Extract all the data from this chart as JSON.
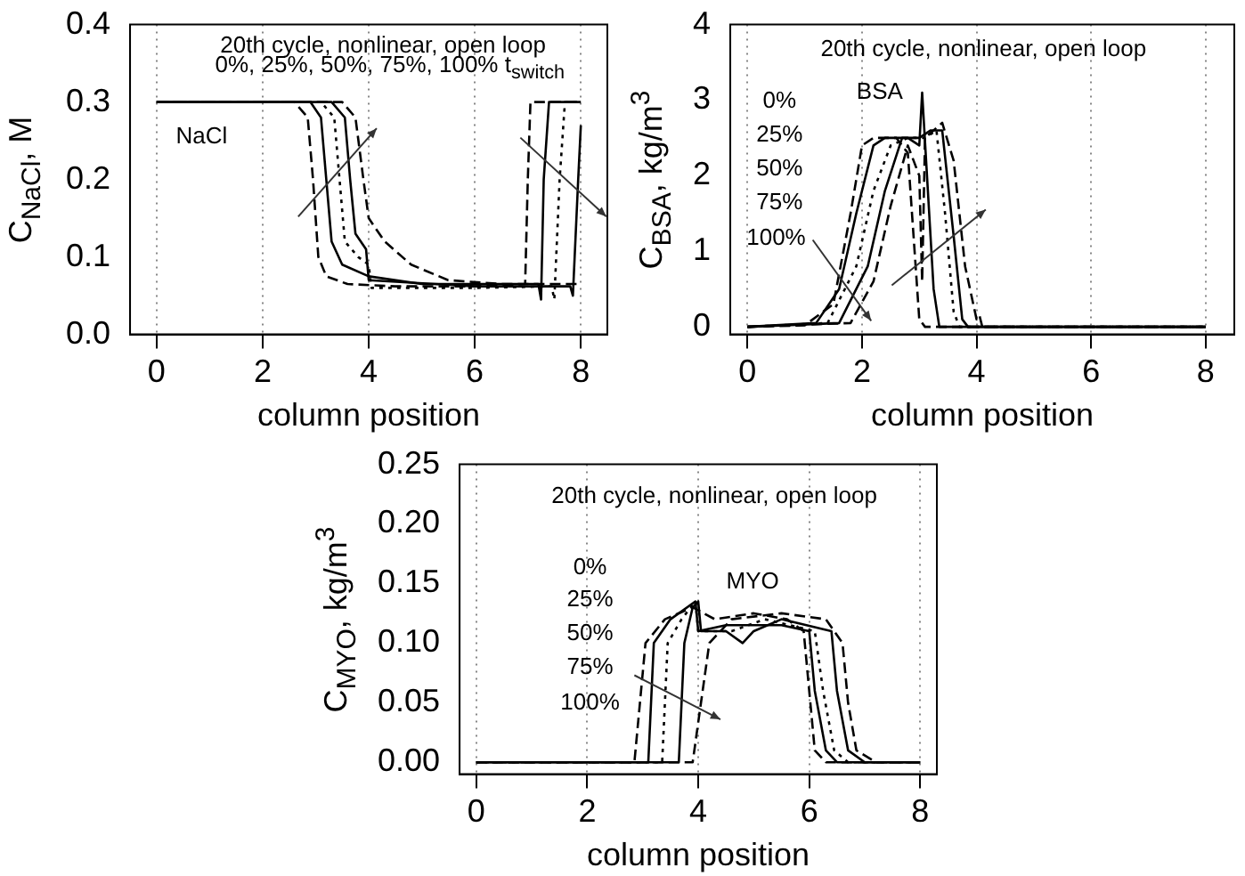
{
  "chart_data": [
    {
      "type": "line",
      "ylabel": "C$_{NaCl}$, M",
      "xlabel": "column position",
      "xlim": [
        -0.5,
        8.5
      ],
      "xticks": [
        0,
        2,
        4,
        6,
        8
      ],
      "ylim": [
        0,
        0.4
      ],
      "yticks": [
        {
          "value": 0,
          "label": "0.0"
        },
        0.1,
        0.2,
        0.3,
        0.4
      ],
      "grid": "x",
      "legend": false,
      "annotations": [
        "20th cycle, nonlinear, open loop",
        "0%, 25%, 50%, 75%, 100% t$_{switch}$",
        "NaCl"
      ],
      "series": [
        {
          "color": "#000000",
          "line_style": "dashed",
          "x": [
            0,
            2.6,
            2.85,
            2.95,
            3.05,
            3.2,
            3.6,
            4.5,
            6,
            6.95,
            7.0,
            7.05,
            8
          ],
          "values": [
            0.3,
            0.3,
            0.28,
            0.2,
            0.1,
            0.075,
            0.065,
            0.062,
            0.062,
            0.065,
            0.2,
            0.3,
            0.3
          ]
        },
        {
          "color": "#000000",
          "line_style": "solid",
          "x": [
            0,
            2.9,
            3.1,
            3.2,
            3.3,
            3.5,
            4,
            5,
            7.2,
            7.25,
            7.3,
            7.4,
            8
          ],
          "values": [
            0.3,
            0.3,
            0.28,
            0.2,
            0.12,
            0.09,
            0.075,
            0.065,
            0.065,
            0.045,
            0.2,
            0.3,
            0.3
          ]
        },
        {
          "color": "#000000",
          "line_style": "dotted",
          "x": [
            0,
            3.1,
            3.35,
            3.45,
            3.55,
            3.8,
            4,
            4.05,
            6,
            7.45,
            7.5,
            7.6,
            7.7,
            8
          ],
          "values": [
            0.3,
            0.3,
            0.28,
            0.2,
            0.12,
            0.1,
            0.09,
            0.06,
            0.06,
            0.062,
            0.045,
            0.2,
            0.3,
            0.3
          ]
        },
        {
          "color": "#000000",
          "line_style": "solid",
          "x": [
            0,
            3.3,
            3.55,
            3.65,
            3.75,
            3.95,
            4.0,
            6,
            7.8,
            7.85,
            7.95,
            8
          ],
          "values": [
            0.3,
            0.3,
            0.28,
            0.2,
            0.13,
            0.11,
            0.07,
            0.062,
            0.062,
            0.05,
            0.2,
            0.27
          ]
        },
        {
          "color": "#000000",
          "line_style": "dashed",
          "x": [
            0,
            3.5,
            3.75,
            3.9,
            4.0,
            4.3,
            4.8,
            5.5,
            6.5,
            8
          ],
          "values": [
            0.3,
            0.3,
            0.28,
            0.2,
            0.15,
            0.12,
            0.09,
            0.07,
            0.065,
            0.065
          ]
        }
      ]
    },
    {
      "type": "line",
      "ylabel": "C$_{BSA}$, kg/m$^{3}$",
      "xlabel": "column position",
      "xlim": [
        -0.3,
        8.5
      ],
      "xticks": [
        0,
        2,
        4,
        6,
        8
      ],
      "ylim": [
        -0.1,
        4
      ],
      "yticks": [
        0,
        1,
        2,
        3,
        4
      ],
      "grid": "x",
      "legend": false,
      "annotations": [
        "20th cycle, nonlinear, open loop",
        "0%",
        "25%",
        "50%",
        "75%",
        "100%",
        "BSA"
      ],
      "series": [
        {
          "color": "#000000",
          "line_style": "dashed",
          "x": [
            0,
            1.0,
            1.5,
            1.8,
            2.0,
            2.2,
            2.6,
            2.8,
            2.9,
            3.0,
            3.1,
            8
          ],
          "values": [
            0,
            0.02,
            0.3,
            1.5,
            2.4,
            2.5,
            2.5,
            2.3,
            1.2,
            0.1,
            0,
            0
          ]
        },
        {
          "color": "#000000",
          "line_style": "solid",
          "x": [
            0,
            1.2,
            1.6,
            1.9,
            2.2,
            2.4,
            2.8,
            3.0,
            3.05,
            3.15,
            3.25,
            3.35,
            8
          ],
          "values": [
            0,
            0.05,
            0.5,
            1.5,
            2.4,
            2.5,
            2.5,
            2.4,
            3.1,
            1.8,
            0.5,
            0,
            0
          ]
        },
        {
          "color": "#000000",
          "line_style": "dotted",
          "x": [
            0,
            1.4,
            1.9,
            2.2,
            2.5,
            2.8,
            3.1,
            3.3,
            3.45,
            3.6,
            3.7,
            8
          ],
          "values": [
            0,
            0.05,
            0.8,
            1.8,
            2.4,
            2.5,
            2.5,
            2.6,
            1.5,
            0.2,
            0,
            0
          ]
        },
        {
          "color": "#000000",
          "line_style": "solid",
          "x": [
            0,
            1.6,
            2.1,
            2.4,
            2.7,
            3.0,
            3.2,
            3.4,
            3.6,
            3.75,
            3.85,
            8
          ],
          "values": [
            0,
            0.05,
            0.8,
            1.8,
            2.5,
            2.5,
            2.6,
            2.6,
            1.2,
            0.1,
            0,
            0
          ]
        },
        {
          "color": "#000000",
          "line_style": "dashed",
          "x": [
            0,
            1.8,
            2.2,
            2.5,
            2.8,
            3.0,
            3.05,
            3.1,
            3.4,
            3.6,
            3.8,
            4.0,
            4.05,
            4.1,
            8
          ],
          "values": [
            0,
            0.05,
            0.6,
            1.6,
            2.4,
            2.0,
            0.6,
            2.5,
            2.7,
            2.2,
            0.8,
            0.1,
            0.15,
            0,
            0
          ]
        }
      ]
    },
    {
      "type": "line",
      "ylabel": "C$_{MYO}$, kg/m$^{3}$",
      "xlabel": "column position",
      "xlim": [
        -0.3,
        8.3
      ],
      "xticks": [
        0,
        2,
        4,
        6,
        8
      ],
      "ylim": [
        -0.01,
        0.25
      ],
      "yticks": [
        {
          "value": 0,
          "label": "0.00"
        },
        0.05,
        {
          "value": 0.1,
          "label": "0.10"
        },
        0.15,
        {
          "value": 0.2,
          "label": "0.20"
        },
        0.25
      ],
      "grid": "x",
      "legend": false,
      "annotations": [
        "20th cycle, nonlinear, open loop",
        "0%",
        "25%",
        "50%",
        "75%",
        "100%",
        "MYO"
      ],
      "series": [
        {
          "color": "#000000",
          "line_style": "dashed",
          "x": [
            0,
            2.85,
            2.95,
            3.05,
            3.4,
            3.9,
            4.3,
            5,
            5.6,
            5.9,
            6.0,
            6.1,
            6.3,
            8
          ],
          "values": [
            0,
            0,
            0.05,
            0.1,
            0.12,
            0.13,
            0.12,
            0.125,
            0.12,
            0.11,
            0.06,
            0.01,
            0,
            0
          ]
        },
        {
          "color": "#000000",
          "line_style": "solid",
          "x": [
            0,
            3.1,
            3.2,
            3.5,
            3.95,
            4.0,
            4.5,
            5.5,
            6.0,
            6.1,
            6.3,
            6.5,
            8
          ],
          "values": [
            0,
            0,
            0.1,
            0.12,
            0.135,
            0.11,
            0.115,
            0.115,
            0.11,
            0.06,
            0.01,
            0,
            0
          ]
        },
        {
          "color": "#000000",
          "line_style": "dotted",
          "x": [
            0,
            3.35,
            3.45,
            3.7,
            3.95,
            4.0,
            4.6,
            5.2,
            6.1,
            6.25,
            6.45,
            6.7,
            8
          ],
          "values": [
            0,
            0,
            0.1,
            0.12,
            0.135,
            0.11,
            0.11,
            0.12,
            0.11,
            0.06,
            0.01,
            0,
            0
          ]
        },
        {
          "color": "#000000",
          "line_style": "solid",
          "x": [
            0,
            3.65,
            3.75,
            3.9,
            4.0,
            4.05,
            4.5,
            4.8,
            5.0,
            5.5,
            6.4,
            6.5,
            6.7,
            7.0,
            8
          ],
          "values": [
            0,
            0,
            0.1,
            0.13,
            0.135,
            0.11,
            0.11,
            0.1,
            0.11,
            0.12,
            0.11,
            0.06,
            0.01,
            0,
            0
          ]
        },
        {
          "color": "#000000",
          "line_style": "dashed",
          "x": [
            0,
            3.9,
            4.05,
            4.2,
            4.6,
            5.5,
            6.3,
            6.6,
            6.7,
            6.85,
            7.2,
            8
          ],
          "values": [
            0,
            0,
            0.05,
            0.1,
            0.12,
            0.125,
            0.12,
            0.1,
            0.05,
            0.01,
            0,
            0
          ]
        }
      ]
    }
  ]
}
